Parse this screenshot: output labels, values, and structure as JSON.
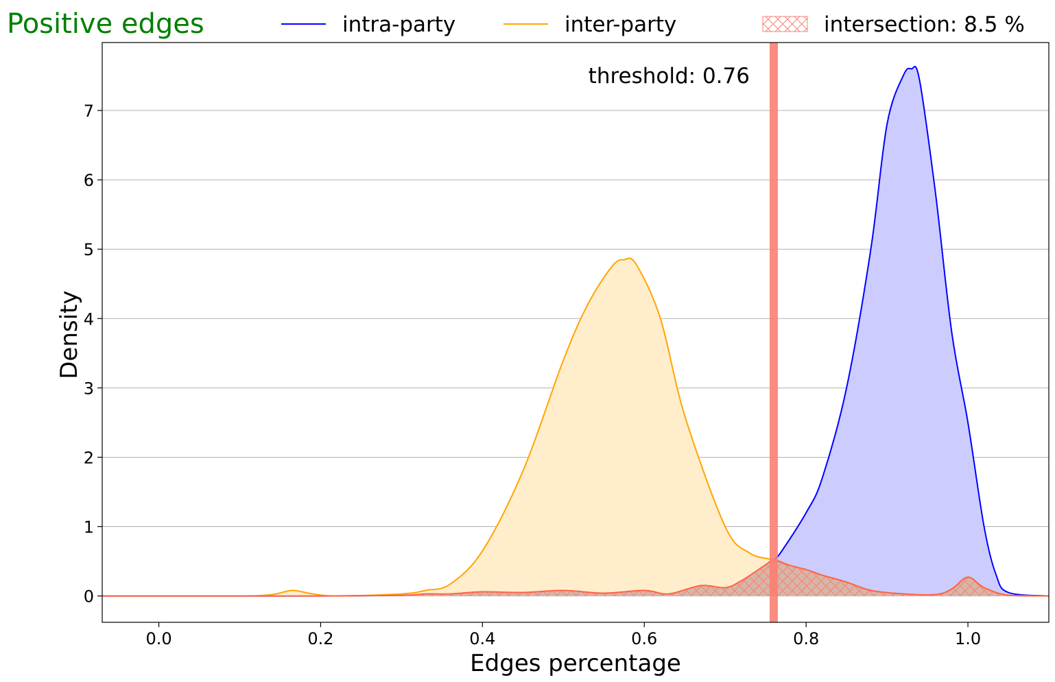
{
  "chart_data": {
    "type": "area",
    "title": "Positive edges",
    "title_color": "#008000",
    "xlabel": "Edges percentage",
    "ylabel": "Density",
    "xlim": [
      -0.07,
      1.1
    ],
    "ylim": [
      -0.38,
      7.98
    ],
    "xticks": [
      0.0,
      0.2,
      0.4,
      0.6,
      0.8,
      1.0
    ],
    "xtick_labels": [
      "0.0",
      "0.2",
      "0.4",
      "0.6",
      "0.8",
      "1.0"
    ],
    "yticks": [
      0,
      1,
      2,
      3,
      4,
      5,
      6,
      7
    ],
    "ytick_labels": [
      "0",
      "1",
      "2",
      "3",
      "4",
      "5",
      "6",
      "7"
    ],
    "grid": "horizontal",
    "legend_placement": "top, outside plot",
    "threshold": {
      "value": 0.76,
      "label": "threshold: 0.76",
      "color": "#fa8072"
    },
    "series": [
      {
        "name": "intra-party",
        "color": "#0000ff",
        "fill": "#ccccff",
        "x": [
          -0.07,
          0.0,
          0.1,
          0.2,
          0.3,
          0.33,
          0.36,
          0.4,
          0.45,
          0.5,
          0.55,
          0.6,
          0.63,
          0.67,
          0.7,
          0.72,
          0.75,
          0.76,
          0.77,
          0.8,
          0.82,
          0.85,
          0.88,
          0.9,
          0.92,
          0.93,
          0.94,
          0.96,
          0.98,
          1.0,
          1.02,
          1.035,
          1.05,
          1.1
        ],
        "values": [
          0,
          0,
          0,
          0,
          0.01,
          0.03,
          0.03,
          0.06,
          0.05,
          0.08,
          0.04,
          0.08,
          0.03,
          0.15,
          0.12,
          0.22,
          0.45,
          0.52,
          0.65,
          1.2,
          1.7,
          3.0,
          5.0,
          6.8,
          7.5,
          7.6,
          7.45,
          5.8,
          3.8,
          2.5,
          1.0,
          0.3,
          0.05,
          0
        ]
      },
      {
        "name": "inter-party",
        "color": "#ffa500",
        "fill": "#ffedcc",
        "x": [
          -0.07,
          0.0,
          0.1,
          0.14,
          0.165,
          0.19,
          0.22,
          0.3,
          0.33,
          0.36,
          0.4,
          0.45,
          0.5,
          0.53,
          0.56,
          0.575,
          0.59,
          0.62,
          0.65,
          0.7,
          0.73,
          0.76,
          0.78,
          0.8,
          0.82,
          0.85,
          0.88,
          0.92,
          0.96,
          0.98,
          1.0,
          1.02,
          1.05,
          1.1
        ],
        "values": [
          0,
          0,
          0,
          0.02,
          0.08,
          0.03,
          0.0,
          0.03,
          0.08,
          0.17,
          0.65,
          1.8,
          3.4,
          4.2,
          4.75,
          4.85,
          4.78,
          4.0,
          2.6,
          1.0,
          0.62,
          0.52,
          0.44,
          0.38,
          0.3,
          0.2,
          0.08,
          0.03,
          0.02,
          0.1,
          0.27,
          0.12,
          0.01,
          0
        ]
      },
      {
        "name": "intersection: 8.5 %",
        "color": "#ff6347",
        "fill": "rgba(165,115,125,0.45)",
        "hatch": "#fa8072",
        "x": [
          -0.07,
          0.0,
          0.1,
          0.2,
          0.3,
          0.33,
          0.36,
          0.4,
          0.45,
          0.5,
          0.55,
          0.6,
          0.63,
          0.67,
          0.7,
          0.72,
          0.75,
          0.76,
          0.78,
          0.8,
          0.82,
          0.85,
          0.88,
          0.92,
          0.96,
          0.98,
          1.0,
          1.02,
          1.05,
          1.1
        ],
        "values": [
          0,
          0,
          0,
          0,
          0.01,
          0.03,
          0.03,
          0.06,
          0.05,
          0.08,
          0.04,
          0.08,
          0.03,
          0.15,
          0.12,
          0.22,
          0.45,
          0.52,
          0.44,
          0.38,
          0.3,
          0.2,
          0.08,
          0.03,
          0.02,
          0.1,
          0.27,
          0.12,
          0.01,
          0
        ]
      }
    ]
  }
}
